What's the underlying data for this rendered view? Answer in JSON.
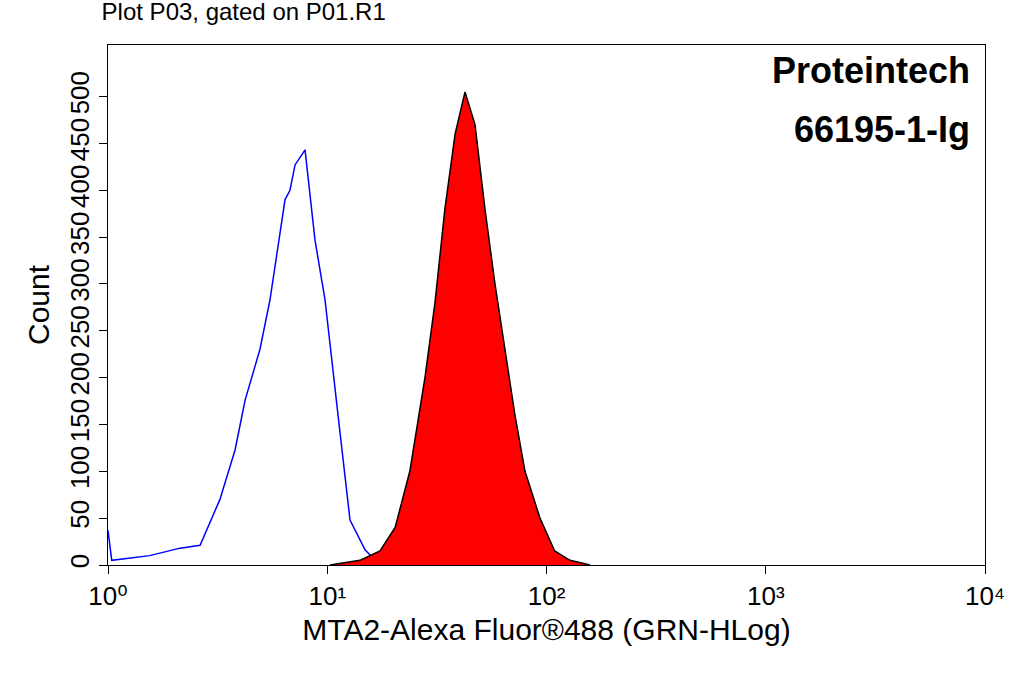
{
  "chart_data": {
    "type": "line",
    "title": "Plot P03, gated on P01.R1",
    "x_label": "MTA2-Alexa Fluor®488 (GRN-HLog)",
    "y_label": "Count",
    "annotations": [
      "Proteintech",
      "66195-1-Ig"
    ],
    "log": "x",
    "grid": false,
    "xlim": [
      1,
      10000
    ],
    "xticks": [
      {
        "value": 1,
        "label": "10⁰"
      },
      {
        "value": 10,
        "label": "10¹"
      },
      {
        "value": 100,
        "label": "10²"
      },
      {
        "value": 1000,
        "label": "10³"
      },
      {
        "value": 10000,
        "label": "10⁴"
      }
    ],
    "ylim": [
      0,
      555
    ],
    "yticks": [
      0,
      50,
      100,
      150,
      200,
      250,
      300,
      350,
      400,
      450,
      500
    ],
    "series": [
      {
        "type": "line",
        "color": "#0000ff",
        "x": [
          1.0,
          1.04,
          1.55,
          2.13,
          2.63,
          3.24,
          3.8,
          4.22,
          4.93,
          5.48,
          6.42,
          6.76,
          7.13,
          7.92,
          8.79,
          9.77,
          11.4,
          12.7,
          14.9,
          17.4
        ],
        "values": [
          37,
          5,
          10,
          18,
          21,
          70,
          123,
          176,
          230,
          283,
          390,
          400,
          427,
          443,
          347,
          283,
          144,
          48,
          16,
          0
        ]
      },
      {
        "type": "area",
        "color": "#ff0000",
        "x": [
          10.3,
          14.1,
          17.4,
          20.4,
          23.8,
          27.9,
          31.0,
          34.4,
          38.3,
          42.5,
          47.2,
          52.4,
          58.2,
          64.7,
          71.8,
          79.8,
          93.4,
          109,
          128,
          158
        ],
        "values": [
          0,
          5,
          15,
          40,
          100,
          200,
          280,
          380,
          460,
          505,
          470,
          380,
          300,
          230,
          160,
          100,
          50,
          15,
          5,
          0
        ]
      }
    ]
  }
}
